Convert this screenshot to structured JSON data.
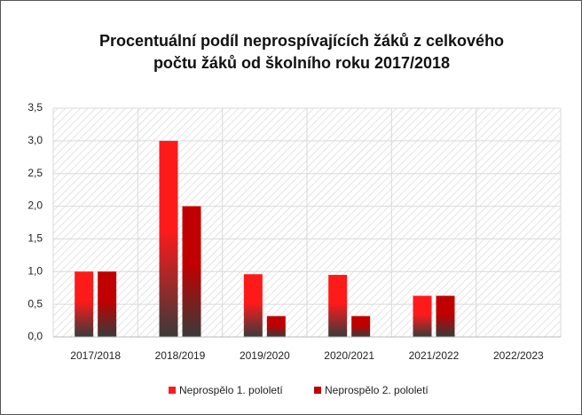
{
  "chart_data": {
    "type": "bar",
    "title": [
      "Procentuální podíl neprospívajících žáků z celkového",
      "počtu žáků od školního roku 2017/2018"
    ],
    "categories": [
      "2017/2018",
      "2018/2019",
      "2019/2020",
      "2020/2021",
      "2021/2022",
      "2022/2023"
    ],
    "series": [
      {
        "name": "Neprospělo 1. pololetí",
        "color": "#ff1a1a",
        "values": [
          1.0,
          3.0,
          0.96,
          0.95,
          0.63,
          null
        ]
      },
      {
        "name": "Neprospělo 2. pololetí",
        "color": "#c00000",
        "values": [
          1.0,
          2.0,
          0.32,
          0.32,
          0.63,
          null
        ]
      }
    ],
    "ylim": [
      0,
      3.5
    ],
    "yticks": [
      {
        "value": 0,
        "label": "0,0"
      },
      {
        "value": 0.5,
        "label": "0,5"
      },
      {
        "value": 1,
        "label": "1,0"
      },
      {
        "value": 1.5,
        "label": "1,5"
      },
      {
        "value": 2,
        "label": "2,0"
      },
      {
        "value": 2.5,
        "label": "2,5"
      },
      {
        "value": 3,
        "label": "3,0"
      },
      {
        "value": 3.5,
        "label": "3,5"
      }
    ],
    "grid": true,
    "legend": "bottom"
  }
}
